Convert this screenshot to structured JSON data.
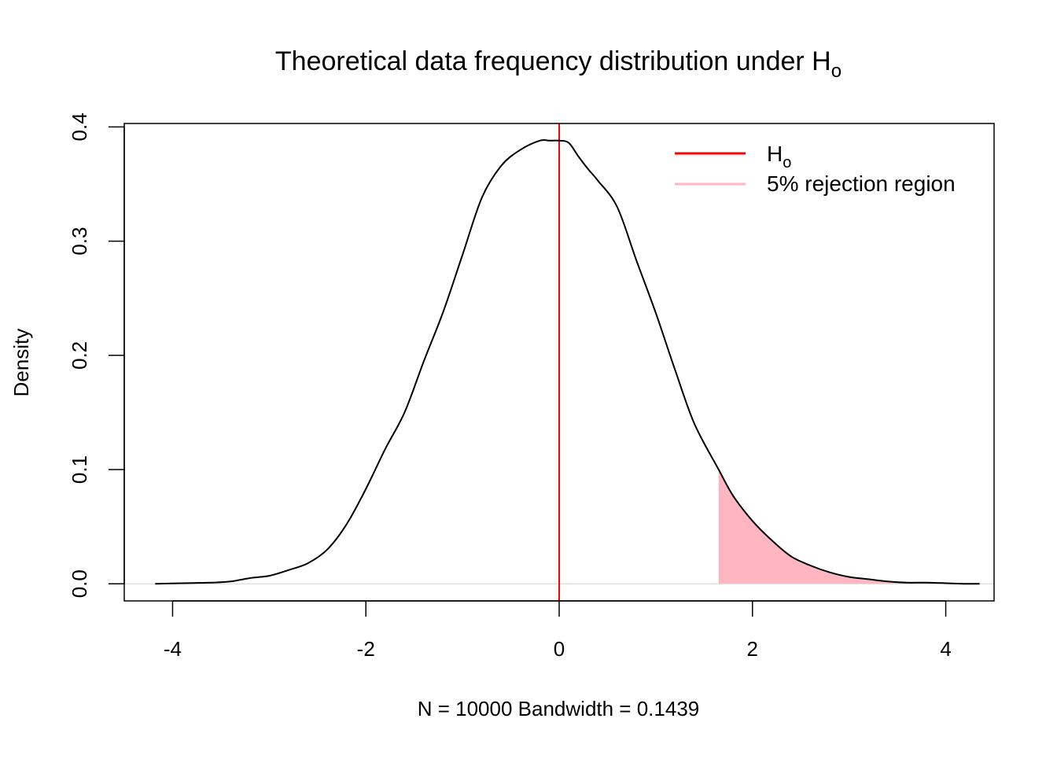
{
  "chart_data": {
    "type": "area",
    "title": {
      "main": "Theoretical data frequency distribution under H",
      "subscript": "o"
    },
    "xlabel": "N = 10000   Bandwidth = 0.1439",
    "ylabel": "Density",
    "xlim": [
      -4.5,
      4.5
    ],
    "ylim": [
      -0.015,
      0.403
    ],
    "xticks": [
      "-4",
      "-2",
      "0",
      "2",
      "4"
    ],
    "xtick_values": [
      -4,
      -2,
      0,
      2,
      4
    ],
    "yticks": [
      "0.0",
      "0.1",
      "0.2",
      "0.3",
      "0.4"
    ],
    "ytick_values": [
      0.0,
      0.1,
      0.2,
      0.3,
      0.4
    ],
    "grid": false,
    "legend_position": "top-right",
    "legend": [
      {
        "label": "H",
        "subscript": "o",
        "color": "#ff0000"
      },
      {
        "label": "5% rejection region",
        "color": "#ffb6c1"
      }
    ],
    "density_curve": {
      "x": [
        -4.18,
        -3.9,
        -3.6,
        -3.4,
        -3.2,
        -3.0,
        -2.8,
        -2.6,
        -2.4,
        -2.2,
        -2.0,
        -1.8,
        -1.6,
        -1.4,
        -1.2,
        -1.0,
        -0.8,
        -0.6,
        -0.4,
        -0.2,
        -0.1,
        0.0,
        0.1,
        0.2,
        0.3,
        0.4,
        0.6,
        0.8,
        1.0,
        1.2,
        1.4,
        1.65,
        1.8,
        2.0,
        2.2,
        2.4,
        2.6,
        2.8,
        3.0,
        3.2,
        3.4,
        3.6,
        3.8,
        4.0,
        4.2,
        4.35
      ],
      "y": [
        0.0,
        0.0005,
        0.001,
        0.002,
        0.005,
        0.007,
        0.012,
        0.018,
        0.03,
        0.052,
        0.083,
        0.118,
        0.15,
        0.195,
        0.238,
        0.288,
        0.338,
        0.366,
        0.38,
        0.388,
        0.388,
        0.388,
        0.386,
        0.374,
        0.363,
        0.353,
        0.33,
        0.283,
        0.237,
        0.187,
        0.14,
        0.1,
        0.077,
        0.055,
        0.038,
        0.024,
        0.016,
        0.01,
        0.006,
        0.004,
        0.002,
        0.001,
        0.001,
        0.0005,
        0.0,
        0.0
      ],
      "color": "#000000"
    },
    "h0_line": {
      "x": 0,
      "color": "#ff0000"
    },
    "rejection_region": {
      "x_from": 1.645,
      "x_to": 4.35,
      "color": "#ffb6c1"
    },
    "baseline": {
      "y": 0,
      "color": "#d3d3d3"
    }
  }
}
